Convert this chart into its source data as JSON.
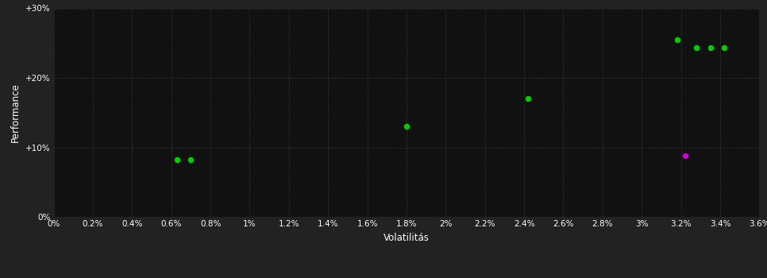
{
  "background_color": "#222222",
  "plot_bg_color": "#111111",
  "text_color": "#ffffff",
  "xlabel": "Volatilitás",
  "ylabel": "Performance",
  "xlim": [
    0,
    0.036
  ],
  "ylim": [
    0,
    0.3
  ],
  "xticks": [
    0,
    0.002,
    0.004,
    0.006,
    0.008,
    0.01,
    0.012,
    0.014,
    0.016,
    0.018,
    0.02,
    0.022,
    0.024,
    0.026,
    0.028,
    0.03,
    0.032,
    0.034,
    0.036
  ],
  "yticks": [
    0,
    0.1,
    0.2,
    0.3
  ],
  "green_points": [
    [
      0.0063,
      0.082
    ],
    [
      0.007,
      0.082
    ],
    [
      0.018,
      0.13
    ],
    [
      0.0242,
      0.17
    ],
    [
      0.0318,
      0.255
    ],
    [
      0.0328,
      0.243
    ],
    [
      0.0335,
      0.243
    ],
    [
      0.0342,
      0.243
    ]
  ],
  "magenta_points": [
    [
      0.0322,
      0.088
    ]
  ],
  "point_size": 30,
  "green_color": "#00cc00",
  "magenta_color": "#cc00cc"
}
